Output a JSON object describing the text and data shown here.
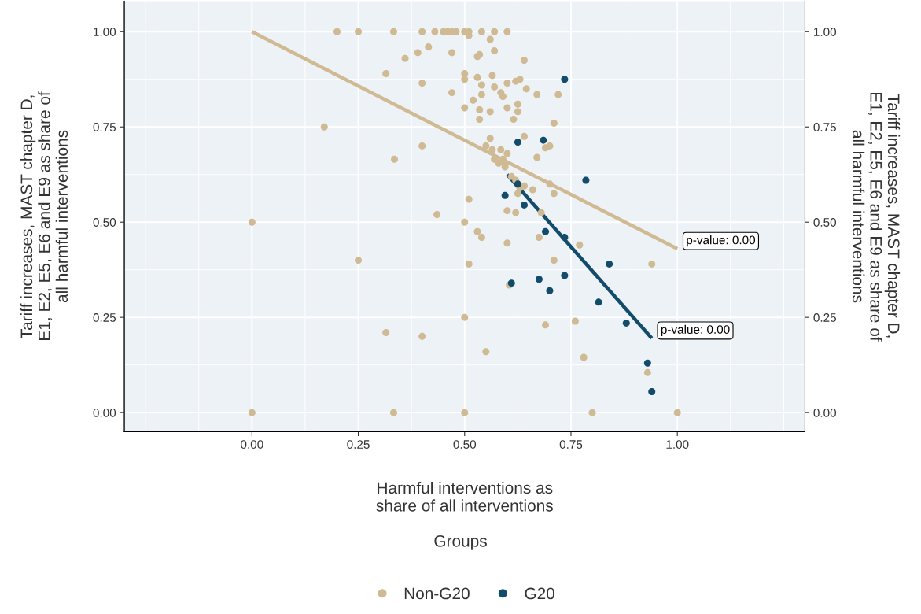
{
  "chart_data": {
    "type": "scatter",
    "xlabel": "Harmful interventions as\nshare of all interventions",
    "ylabel": "Tariff increases, MAST chapter D,\nE1, E2, E5, E6 and E9 as share of\nall harmful interventions",
    "y2label": "Tariff increases, MAST chapter D,\nE1, E2, E5, E6 and E9 as share of\nall harmful interventions",
    "legend_title": "Groups",
    "legend": "bottom",
    "grid": true,
    "xlim": [
      -0.3,
      1.3
    ],
    "ylim": [
      -0.05,
      1.08
    ],
    "y2lim": [
      -0.05,
      1.08
    ],
    "xticks": [
      {
        "value": 0,
        "label": "0.00"
      },
      {
        "value": 0.25,
        "label": "0.25"
      },
      {
        "value": 0.5,
        "label": "0.50"
      },
      {
        "value": 0.75,
        "label": "0.75"
      },
      {
        "value": 1,
        "label": "1.00"
      }
    ],
    "yticks": [
      {
        "value": 0,
        "label": "0.00"
      },
      {
        "value": 0.25,
        "label": "0.25"
      },
      {
        "value": 0.5,
        "label": "0.50"
      },
      {
        "value": 0.75,
        "label": "0.75"
      },
      {
        "value": 1,
        "label": "1.00"
      }
    ],
    "y2ticks": [
      {
        "value": 0,
        "label": "0.00"
      },
      {
        "value": 0.25,
        "label": "0.25"
      },
      {
        "value": 0.5,
        "label": "0.50"
      },
      {
        "value": 0.75,
        "label": "0.75"
      },
      {
        "value": 1,
        "label": "1.00"
      }
    ],
    "series": [
      {
        "name": "Non-G20",
        "color": "#cfba93",
        "marker": "circle",
        "x": [
          0.2,
          0.25,
          0.333,
          0.4,
          0.43,
          0.45,
          0.46,
          0.47,
          0.48,
          0.5,
          0.51,
          0.54,
          0.57,
          0.6,
          0.51,
          0.56,
          0.36,
          0.39,
          0.415,
          0.47,
          0.57,
          0.53,
          0.535,
          0.64,
          0.315,
          0.4,
          0.5,
          0.5,
          0.53,
          0.54,
          0.565,
          0.6,
          0.63,
          0.645,
          0.47,
          0.5,
          0.52,
          0.54,
          0.57,
          0.585,
          0.59,
          0.62,
          0.67,
          0.72,
          0.56,
          0.535,
          0.6,
          0.625,
          0.625,
          0.535,
          0.615,
          0.64,
          0.71,
          0.17,
          0.4,
          0.335,
          0.56,
          0.55,
          0.565,
          0.585,
          0.6,
          0.57,
          0.59,
          0.595,
          0.58,
          0.595,
          0.67,
          0.69,
          0.7,
          0.61,
          0.62,
          0.63,
          0.64,
          0.66,
          0.7,
          0.71,
          0.625,
          0.6,
          0.62,
          0.68,
          0.51,
          0.435,
          0.5,
          0.53,
          0.54,
          0.6,
          0.675,
          0.71,
          0.77,
          0.605,
          0.51,
          0.94,
          0.0,
          0.25,
          0.315,
          0.4,
          0.5,
          0.55,
          0.69,
          0.76,
          0.78,
          0.93,
          0.0,
          0.333,
          0.5,
          0.8,
          1.0
        ],
        "values": [
          1,
          1,
          1,
          1,
          1,
          1,
          1,
          1,
          1,
          1,
          1,
          1,
          1,
          1,
          0.99,
          0.98,
          0.93,
          0.945,
          0.96,
          0.945,
          0.95,
          0.935,
          0.94,
          0.925,
          0.89,
          0.865,
          0.89,
          0.875,
          0.88,
          0.86,
          0.885,
          0.865,
          0.875,
          0.85,
          0.84,
          0.8,
          0.82,
          0.835,
          0.855,
          0.84,
          0.83,
          0.87,
          0.835,
          0.835,
          0.79,
          0.795,
          0.8,
          0.81,
          0.79,
          0.77,
          0.77,
          0.725,
          0.76,
          0.75,
          0.7,
          0.665,
          0.72,
          0.7,
          0.69,
          0.69,
          0.68,
          0.665,
          0.665,
          0.655,
          0.655,
          0.645,
          0.67,
          0.695,
          0.7,
          0.62,
          0.61,
          0.59,
          0.595,
          0.585,
          0.6,
          0.575,
          0.575,
          0.53,
          0.525,
          0.525,
          0.56,
          0.52,
          0.5,
          0.475,
          0.46,
          0.445,
          0.46,
          0.4,
          0.44,
          0.335,
          0.39,
          0.39,
          0.5,
          0.4,
          0.21,
          0.2,
          0.25,
          0.16,
          0.23,
          0.24,
          0.145,
          0.105,
          0,
          0,
          0,
          0,
          0
        ]
      },
      {
        "name": "G20",
        "color": "#134b6b",
        "marker": "circle",
        "x": [
          0.735,
          0.625,
          0.685,
          0.785,
          0.595,
          0.625,
          0.64,
          0.69,
          0.735,
          0.84,
          0.61,
          0.675,
          0.7,
          0.735,
          0.815,
          0.88,
          0.93,
          0.94
        ],
        "values": [
          0.875,
          0.71,
          0.715,
          0.61,
          0.57,
          0.6,
          0.545,
          0.475,
          0.46,
          0.39,
          0.34,
          0.35,
          0.32,
          0.36,
          0.29,
          0.235,
          0.13,
          0.055
        ]
      },
      {
        "color": "#cfba93",
        "type": "line",
        "marker": "none",
        "x": [
          0,
          1
        ],
        "values": [
          1.0,
          0.43
        ]
      },
      {
        "color": "#134b6b",
        "type": "line",
        "marker": "none",
        "x": [
          0.6,
          0.94
        ],
        "values": [
          0.625,
          0.195
        ]
      }
    ],
    "annotations": [
      {
        "text": "p-value: 0.00",
        "x": 1,
        "y": 0.43
      },
      {
        "text": "p-value: 0.00",
        "x": 0.94,
        "y": 0.195
      }
    ]
  }
}
